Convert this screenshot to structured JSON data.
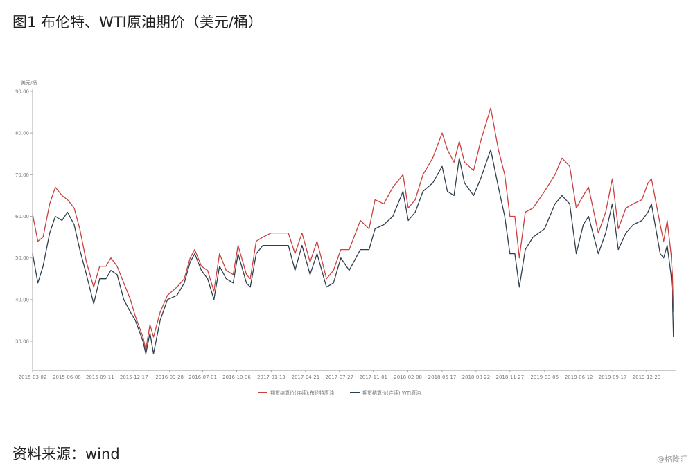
{
  "title": "图1 布伦特、WTI原油期价（美元/桶）",
  "source": "资料来源：wind",
  "watermark": "@格隆汇",
  "chart_data": {
    "type": "line",
    "title": "",
    "ylabel": "美元/桶",
    "xlabel": "",
    "ylim": [
      23,
      90
    ],
    "yticks": [
      "30.00",
      "40.00",
      "50.00",
      "60.00",
      "70.00",
      "80.00",
      "90.00"
    ],
    "xticks": [
      "2015-03-02",
      "2015-06-08",
      "2015-09-11",
      "2015-12-17",
      "2016-03-28",
      "2016-07-01",
      "2016-10-06",
      "2017-01-13",
      "2017-04-21",
      "2017-07-27",
      "2017-11-01",
      "2018-02-08",
      "2018-05-17",
      "2018-08-22",
      "2018-11-27",
      "2019-03-06",
      "2019-06-12",
      "2019-09-17",
      "2019-12-23"
    ],
    "grid": false,
    "legend_position": "bottom",
    "x": [
      "2015-03-02",
      "2015-03-17",
      "2015-04-01",
      "2015-04-20",
      "2015-05-06",
      "2015-05-25",
      "2015-06-10",
      "2015-06-29",
      "2015-07-15",
      "2015-08-03",
      "2015-08-24",
      "2015-09-10",
      "2015-09-28",
      "2015-10-12",
      "2015-10-30",
      "2015-11-18",
      "2015-12-07",
      "2015-12-21",
      "2016-01-12",
      "2016-01-20",
      "2016-02-01",
      "2016-02-11",
      "2016-03-01",
      "2016-03-22",
      "2016-04-18",
      "2016-05-09",
      "2016-05-26",
      "2016-06-08",
      "2016-06-27",
      "2016-07-15",
      "2016-08-02",
      "2016-08-18",
      "2016-09-06",
      "2016-09-26",
      "2016-10-10",
      "2016-11-03",
      "2016-11-14",
      "2016-12-01",
      "2016-12-20",
      "2017-01-13",
      "2017-02-14",
      "2017-03-03",
      "2017-03-22",
      "2017-04-11",
      "2017-05-04",
      "2017-05-24",
      "2017-06-20",
      "2017-07-10",
      "2017-07-31",
      "2017-08-24",
      "2017-09-25",
      "2017-10-20",
      "2017-11-06",
      "2017-12-01",
      "2017-12-27",
      "2018-01-25",
      "2018-02-09",
      "2018-03-01",
      "2018-03-23",
      "2018-04-20",
      "2018-05-17",
      "2018-06-01",
      "2018-06-20",
      "2018-07-05",
      "2018-07-20",
      "2018-08-15",
      "2018-09-04",
      "2018-10-03",
      "2018-10-25",
      "2018-11-12",
      "2018-11-27",
      "2018-12-11",
      "2018-12-24",
      "2019-01-10",
      "2019-02-01",
      "2019-03-06",
      "2019-04-05",
      "2019-04-25",
      "2019-05-17",
      "2019-06-05",
      "2019-06-25",
      "2019-07-10",
      "2019-08-07",
      "2019-08-28",
      "2019-09-16",
      "2019-10-03",
      "2019-10-25",
      "2019-11-15",
      "2019-12-10",
      "2019-12-27",
      "2020-01-06",
      "2020-01-31",
      "2020-02-10",
      "2020-02-20",
      "2020-03-02",
      "2020-03-06",
      "2020-03-09"
    ],
    "series": [
      {
        "name": "期货结算价(连续):布伦特原油",
        "color": "#c8413e",
        "values": [
          60.5,
          54,
          55,
          63,
          67,
          65,
          64,
          62,
          57,
          49,
          43,
          48,
          48,
          50,
          48,
          44,
          40,
          36,
          31,
          28,
          34,
          31,
          37,
          41,
          43,
          45,
          50,
          52,
          48,
          47,
          42,
          51,
          47,
          46,
          53,
          46,
          45,
          54,
          55,
          56,
          56,
          56,
          51,
          56,
          49,
          54,
          45,
          47,
          52,
          52,
          59,
          57,
          64,
          63,
          67,
          70,
          62,
          64,
          70,
          74,
          80,
          76,
          73,
          78,
          73,
          71,
          78,
          86,
          76,
          70,
          60,
          60,
          50,
          61,
          62,
          66,
          70,
          74,
          72,
          62,
          65,
          67,
          56,
          61,
          69,
          57,
          62,
          63,
          64,
          68,
          69,
          58,
          54,
          59,
          51,
          46,
          37
        ]
      },
      {
        "name": "期货结算价(连续):WTI原油",
        "color": "#2f3e4c",
        "values": [
          51,
          44,
          48,
          56,
          60,
          59,
          61,
          58,
          52,
          46,
          39,
          45,
          45,
          47,
          46,
          40,
          37,
          35,
          30,
          27,
          32,
          27,
          35,
          40,
          41,
          44,
          49,
          51,
          47,
          45,
          40,
          48,
          45,
          44,
          51,
          44,
          43,
          51,
          53,
          53,
          53,
          53,
          47,
          53,
          46,
          51,
          43,
          44,
          50,
          47,
          52,
          52,
          57,
          58,
          60,
          66,
          59,
          61,
          66,
          68,
          72,
          66,
          65,
          74,
          68,
          65,
          69,
          76,
          67,
          60,
          51,
          51,
          43,
          52,
          55,
          57,
          63,
          65,
          63,
          51,
          58,
          60,
          51,
          56,
          63,
          52,
          56,
          58,
          59,
          61,
          63,
          51,
          50,
          53,
          46,
          41,
          31
        ]
      }
    ]
  }
}
